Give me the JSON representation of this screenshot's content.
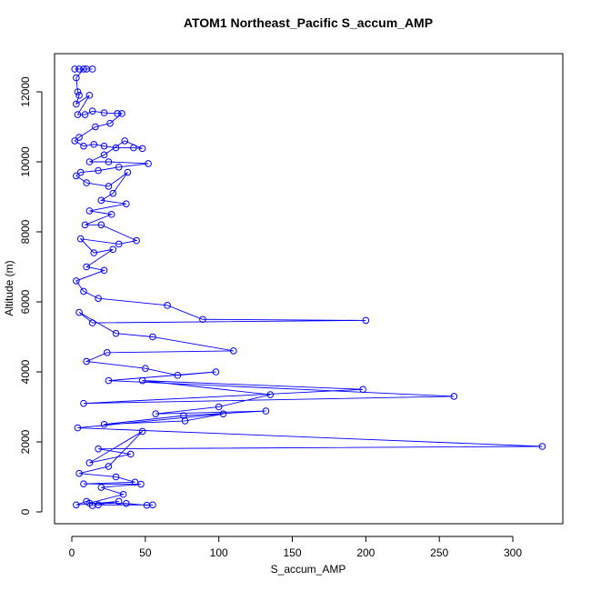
{
  "chart_data": {
    "type": "line",
    "title": "ATOM1 Northeast_Pacific S_accum_AMP",
    "x_label": "S_accum_AMP",
    "y_label": "Altitude (m)",
    "xlim": [
      -11.75,
      334
    ],
    "ylim": [
      -338,
      13091
    ],
    "xticks": [
      0,
      50,
      100,
      150,
      200,
      250,
      300
    ],
    "yticks": [
      0,
      2000,
      4000,
      6000,
      8000,
      10000,
      12000
    ],
    "series": [
      {
        "color": "#0000ff",
        "x": [
          2,
          5,
          10,
          14,
          8,
          3,
          4,
          5,
          3,
          12,
          4,
          9,
          14,
          22,
          31,
          34,
          26,
          16,
          5,
          2,
          8,
          15,
          22,
          30,
          42,
          48,
          36,
          22,
          12,
          25,
          52,
          32,
          18,
          6,
          3,
          10,
          25,
          38,
          28,
          20,
          37,
          12,
          27,
          9,
          20,
          44,
          32,
          6,
          15,
          28,
          10,
          22,
          3,
          8,
          18,
          65,
          89,
          200,
          14,
          5,
          30,
          55,
          110,
          24,
          10,
          50,
          72,
          98,
          25,
          260,
          8,
          198,
          48,
          135,
          100,
          57,
          132,
          76,
          22,
          77,
          103,
          4,
          320,
          18,
          40,
          12,
          48,
          25,
          5,
          30,
          43,
          8,
          47,
          20,
          35,
          12,
          37,
          51,
          55,
          18,
          10,
          3,
          32,
          14
        ],
        "values": [
          12650,
          12650,
          12650,
          12650,
          12650,
          12400,
          12000,
          11900,
          11650,
          11900,
          11350,
          11350,
          11450,
          11400,
          11380,
          11380,
          11100,
          11000,
          10700,
          10600,
          10450,
          10500,
          10450,
          10400,
          10400,
          10380,
          10600,
          10200,
          10000,
          10000,
          9950,
          9850,
          9750,
          9700,
          9600,
          9400,
          9300,
          9700,
          9100,
          8900,
          8800,
          8600,
          8500,
          8200,
          8200,
          7750,
          7650,
          7800,
          7400,
          7500,
          7000,
          6900,
          6600,
          6300,
          6100,
          5900,
          5500,
          5470,
          5400,
          5700,
          5100,
          5000,
          4600,
          4550,
          4300,
          4100,
          3900,
          4000,
          3750,
          3300,
          3100,
          3500,
          3750,
          3350,
          3000,
          2800,
          2880,
          2750,
          2500,
          2600,
          2800,
          2400,
          1870,
          1800,
          1650,
          1400,
          2300,
          1300,
          1100,
          1000,
          850,
          800,
          790,
          700,
          500,
          250,
          240,
          190,
          200,
          200,
          300,
          200,
          300,
          180
        ]
      }
    ]
  }
}
